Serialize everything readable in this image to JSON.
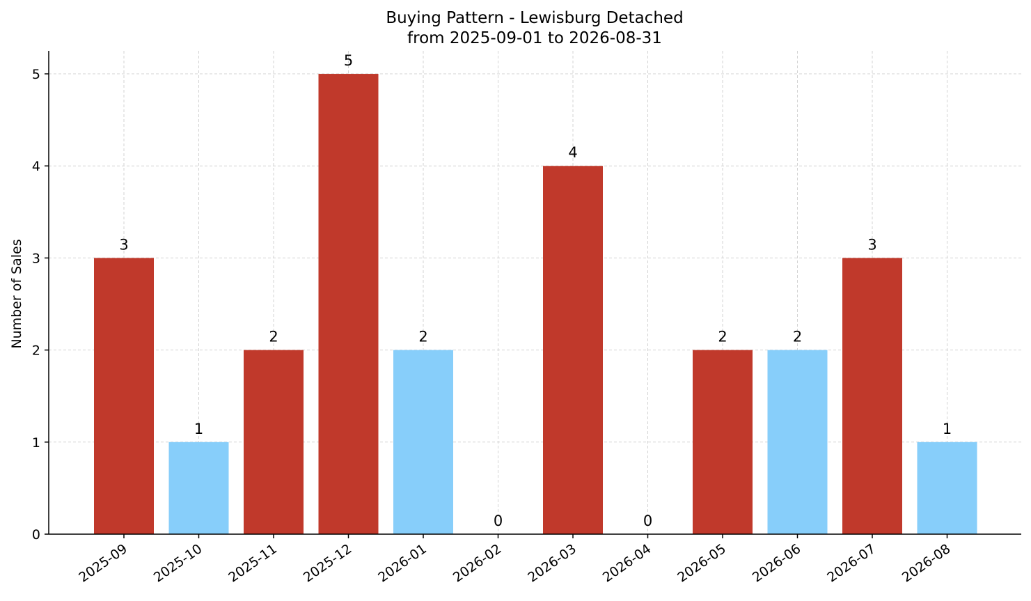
{
  "chart_data": {
    "type": "bar",
    "title": "Buying Pattern - Lewisburg Detached",
    "subtitle": "from 2025-09-01 to 2026-08-31",
    "xlabel": "",
    "ylabel": "Number of Sales",
    "categories": [
      "2025-09",
      "2025-10",
      "2025-11",
      "2025-12",
      "2026-01",
      "2026-02",
      "2026-03",
      "2026-04",
      "2026-05",
      "2026-06",
      "2026-07",
      "2026-08"
    ],
    "values": [
      3,
      1,
      2,
      5,
      2,
      0,
      4,
      0,
      2,
      2,
      3,
      1
    ],
    "bar_colors": [
      "#c0392b",
      "#87cefa",
      "#c0392b",
      "#c0392b",
      "#87cefa",
      "#c0392b",
      "#c0392b",
      "#87cefa",
      "#c0392b",
      "#87cefa",
      "#c0392b",
      "#87cefa"
    ],
    "ylim": [
      0,
      5.25
    ],
    "yticks": [
      0,
      1,
      2,
      3,
      4,
      5
    ],
    "grid": true,
    "legend": "none"
  }
}
